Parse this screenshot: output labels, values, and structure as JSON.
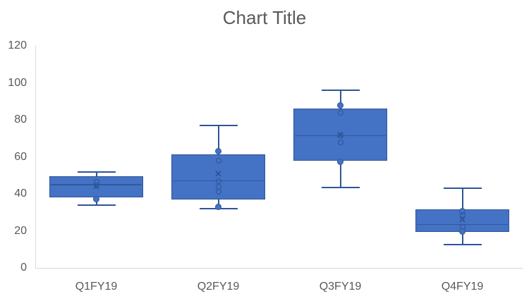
{
  "chart_data": {
    "type": "boxplot",
    "title": "Chart Title",
    "legend": "none",
    "grid": "off",
    "categories": [
      "Q1FY19",
      "Q2FY19",
      "Q3FY19",
      "Q4FY19"
    ],
    "y_axis": {
      "min": 0,
      "max": 120,
      "step": 20,
      "tick_labels": [
        "0",
        "20",
        "40",
        "60",
        "80",
        "100",
        "120"
      ]
    },
    "series": [
      {
        "category": "Q1FY19",
        "whisker_low": 34,
        "q1": 38,
        "median": 45,
        "q3": 49.5,
        "whisker_high": 52,
        "mean": 44,
        "points": [
          {
            "value": 46.5,
            "style": "open"
          },
          {
            "value": 44.5,
            "style": "open"
          },
          {
            "value": 37,
            "style": "filled"
          }
        ]
      },
      {
        "category": "Q2FY19",
        "whisker_low": 32,
        "q1": 37,
        "median": 47,
        "q3": 61.5,
        "whisker_high": 77,
        "mean": 50.5,
        "points": [
          {
            "value": 63,
            "style": "filled"
          },
          {
            "value": 58,
            "style": "open"
          },
          {
            "value": 47,
            "style": "open"
          },
          {
            "value": 44,
            "style": "open"
          },
          {
            "value": 41,
            "style": "open"
          },
          {
            "value": 33,
            "style": "filled"
          }
        ]
      },
      {
        "category": "Q3FY19",
        "whisker_low": 43.5,
        "q1": 58,
        "median": 71.5,
        "q3": 86,
        "whisker_high": 96,
        "mean": 71.5,
        "points": [
          {
            "value": 88,
            "style": "filled"
          },
          {
            "value": 84,
            "style": "open"
          },
          {
            "value": 71.5,
            "style": "open"
          },
          {
            "value": 68,
            "style": "open"
          },
          {
            "value": 57.5,
            "style": "filled"
          }
        ]
      },
      {
        "category": "Q4FY19",
        "whisker_low": 12.5,
        "q1": 19.5,
        "median": 23.5,
        "q3": 31.5,
        "whisker_high": 43,
        "mean": 26,
        "points": [
          {
            "value": 30.5,
            "style": "filled"
          },
          {
            "value": 28.5,
            "style": "open"
          },
          {
            "value": 22,
            "style": "open"
          },
          {
            "value": 19.5,
            "style": "filled"
          }
        ]
      }
    ],
    "icons": {
      "mean_marker": "✕"
    },
    "colors": {
      "box_fill": "#4472C4",
      "box_border": "#2F5597",
      "whisker": "#2F5597",
      "median_line": "#2F5597",
      "axis_line": "#D9D9D9",
      "label_text": "#595959",
      "title_text": "#595959",
      "background": "#FFFFFF"
    }
  }
}
